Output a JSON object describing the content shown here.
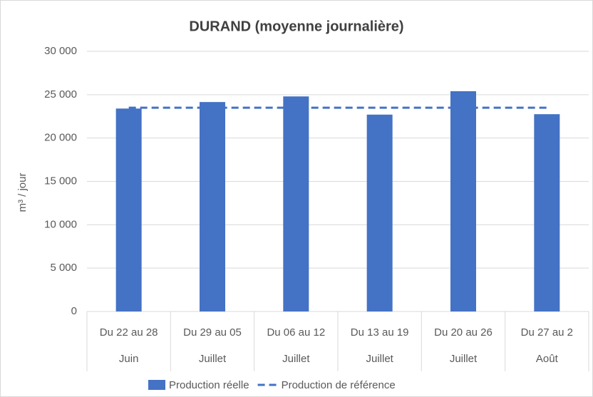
{
  "chart_data": {
    "type": "bar",
    "title": "DURAND (moyenne journalière)",
    "y_label": "m³ / jour",
    "categories": [
      "Du 22 au 28",
      "Du 29 au 05",
      "Du 06 au 12",
      "Du 13 au 19",
      "Du 20 au 26",
      "Du 27 au 2"
    ],
    "months": [
      "Juin",
      "Juillet",
      "Juillet",
      "Juillet",
      "Juillet",
      "Août"
    ],
    "series": [
      {
        "name": "Production réelle",
        "type": "bar",
        "color": "#4472c4",
        "values": [
          23400,
          24150,
          24800,
          22700,
          25400,
          22750
        ]
      },
      {
        "name": "Production de référence",
        "type": "line",
        "dashed": true,
        "color": "#4472c4",
        "values": [
          23500,
          23500,
          23500,
          23500,
          23500,
          23500
        ]
      }
    ],
    "ylim": [
      0,
      30000
    ],
    "yticks": [
      0,
      {
        "value": 5000,
        "label": "5 000"
      },
      {
        "value": 10000,
        "label": "10 000"
      },
      {
        "value": 15000,
        "label": "15 000"
      },
      {
        "value": 20000,
        "label": "20 000"
      },
      {
        "value": 25000,
        "label": "25 000"
      },
      {
        "value": 30000,
        "label": "30 000"
      }
    ],
    "grid": true,
    "legend": "bottom"
  }
}
